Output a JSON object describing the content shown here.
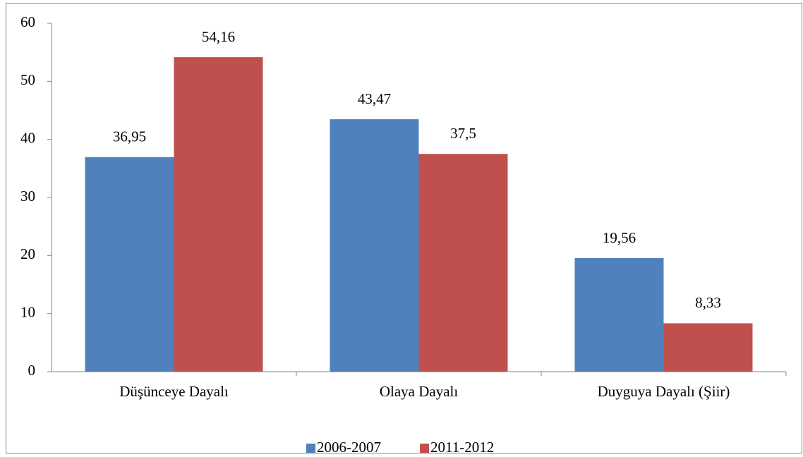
{
  "chart_data": {
    "type": "bar",
    "categories": [
      "Düşünceye Dayalı",
      "Olaya Dayalı",
      "Duyguya Dayalı (Şiir)"
    ],
    "series": [
      {
        "name": "2006-2007",
        "color": "#4f81bd",
        "values": [
          36.95,
          43.47,
          19.56
        ],
        "value_labels": [
          "36,95",
          "43,47",
          "19,56"
        ]
      },
      {
        "name": "2011-2012",
        "color": "#c0504d",
        "values": [
          54.16,
          37.5,
          8.33
        ],
        "value_labels": [
          "54,16",
          "37,5",
          "8,33"
        ]
      }
    ],
    "ylim": [
      0,
      60
    ],
    "yticks": [
      0,
      10,
      20,
      30,
      40,
      50,
      60
    ],
    "grid": false,
    "legend": "bottom"
  }
}
